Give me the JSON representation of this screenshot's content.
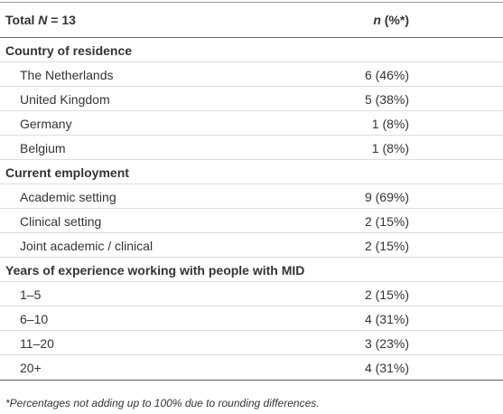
{
  "header": {
    "total": [
      "Total ",
      "N",
      " = 13"
    ],
    "n": [
      "n",
      " (%*)"
    ]
  },
  "sections": [
    {
      "title": "Country of residence",
      "rows": [
        [
          "The Netherlands",
          "6 (46%)"
        ],
        [
          "United Kingdom",
          "5 (38%)"
        ],
        [
          "Germany",
          "1 (8%)"
        ],
        [
          "Belgium",
          "1 (8%)"
        ]
      ]
    },
    {
      "title": "Current employment",
      "rows": [
        [
          "Academic setting",
          "9 (69%)"
        ],
        [
          "Clinical setting",
          "2 (15%)"
        ],
        [
          "Joint academic / clinical",
          "2 (15%)"
        ]
      ]
    },
    {
      "title": "Years of experience working with people with MID",
      "rows": [
        [
          "1–5",
          "2 (15%)"
        ],
        [
          "6–10",
          "4 (31%)"
        ],
        [
          "11–20",
          "3 (23%)"
        ],
        [
          "20+",
          "4 (31%)"
        ]
      ]
    }
  ],
  "footnote": "*Percentages not adding up to 100% due to rounding differences."
}
